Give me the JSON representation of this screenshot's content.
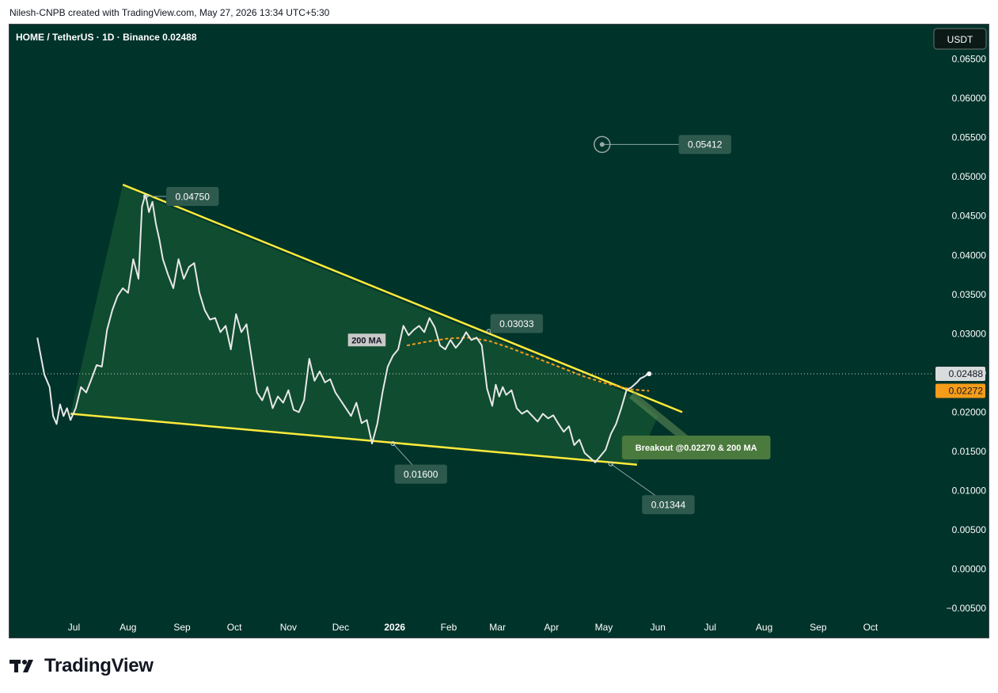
{
  "header": {
    "attribution": "Nilesh-CNPB created with TradingView.com, May 27, 2026 13:34 UTC+5:30"
  },
  "branding": {
    "logo_text": "TradingView"
  },
  "colors": {
    "background": "#00332a",
    "price_line": "#e8e8e8",
    "trendline": "#ffeb3b",
    "ma": "#f59c1a",
    "label_bg": "#2e5a4e",
    "wedge_fill": "#2f7a3c",
    "breakout_bg": "#4b7a3e",
    "ma_badge_bg": "#f59c1a",
    "axis_text": "#ffffff"
  },
  "chart_data": {
    "type": "line",
    "title": "HOME / TetherUS · 1D · Binance",
    "last_price_label": "0.02488",
    "currency": "USDT",
    "ylim": [
      -0.0055,
      0.069
    ],
    "y_ticks": [
      "0.06500",
      "0.06000",
      "0.05500",
      "0.05000",
      "0.04500",
      "0.04000",
      "0.03500",
      "0.03000",
      "0.02500",
      "0.02000",
      "0.01500",
      "0.01000",
      "0.00500",
      "0.00000",
      "−0.00500"
    ],
    "y_tick_values": [
      0.065,
      0.06,
      0.055,
      0.05,
      0.045,
      0.04,
      0.035,
      0.03,
      0.025,
      0.02,
      0.015,
      0.01,
      0.005,
      0,
      -0.005
    ],
    "x_range": [
      "2025-05-25",
      "2026-11-05"
    ],
    "x_ticks": [
      {
        "label": "Jul",
        "date": "2025-07-01",
        "bold": false
      },
      {
        "label": "Aug",
        "date": "2025-08-01",
        "bold": false
      },
      {
        "label": "Sep",
        "date": "2025-09-01",
        "bold": false
      },
      {
        "label": "Oct",
        "date": "2025-10-01",
        "bold": false
      },
      {
        "label": "Nov",
        "date": "2025-11-01",
        "bold": false
      },
      {
        "label": "Dec",
        "date": "2025-12-01",
        "bold": false
      },
      {
        "label": "2026",
        "date": "2026-01-01",
        "bold": true
      },
      {
        "label": "Feb",
        "date": "2026-02-01",
        "bold": false
      },
      {
        "label": "Mar",
        "date": "2026-03-01",
        "bold": false
      },
      {
        "label": "Apr",
        "date": "2026-04-01",
        "bold": false
      },
      {
        "label": "May",
        "date": "2026-05-01",
        "bold": false
      },
      {
        "label": "Jun",
        "date": "2026-06-01",
        "bold": false
      },
      {
        "label": "Jul",
        "date": "2026-07-01",
        "bold": false
      },
      {
        "label": "Aug",
        "date": "2026-08-01",
        "bold": false
      },
      {
        "label": "Sep",
        "date": "2026-09-01",
        "bold": false
      },
      {
        "label": "Oct",
        "date": "2026-10-01",
        "bold": false
      }
    ],
    "price_series": {
      "x": [
        "2025-06-10",
        "2025-06-14",
        "2025-06-17",
        "2025-06-19",
        "2025-06-21",
        "2025-06-23",
        "2025-06-25",
        "2025-06-27",
        "2025-06-29",
        "2025-07-02",
        "2025-07-05",
        "2025-07-08",
        "2025-07-11",
        "2025-07-14",
        "2025-07-17",
        "2025-07-20",
        "2025-07-23",
        "2025-07-26",
        "2025-07-29",
        "2025-08-01",
        "2025-08-04",
        "2025-08-07",
        "2025-08-09",
        "2025-08-11",
        "2025-08-13",
        "2025-08-15",
        "2025-08-17",
        "2025-08-19",
        "2025-08-21",
        "2025-08-24",
        "2025-08-27",
        "2025-08-30",
        "2025-09-02",
        "2025-09-05",
        "2025-09-08",
        "2025-09-11",
        "2025-09-14",
        "2025-09-17",
        "2025-09-20",
        "2025-09-23",
        "2025-09-26",
        "2025-09-29",
        "2025-10-02",
        "2025-10-05",
        "2025-10-08",
        "2025-10-11",
        "2025-10-14",
        "2025-10-17",
        "2025-10-20",
        "2025-10-23",
        "2025-10-26",
        "2025-10-29",
        "2025-11-01",
        "2025-11-04",
        "2025-11-07",
        "2025-11-10",
        "2025-11-13",
        "2025-11-16",
        "2025-11-19",
        "2025-11-22",
        "2025-11-25",
        "2025-11-28",
        "2025-12-01",
        "2025-12-04",
        "2025-12-07",
        "2025-12-10",
        "2025-12-13",
        "2025-12-16",
        "2025-12-19",
        "2025-12-22",
        "2025-12-25",
        "2025-12-28",
        "2025-12-31",
        "2026-01-03",
        "2026-01-06",
        "2026-01-09",
        "2026-01-12",
        "2026-01-15",
        "2026-01-18",
        "2026-01-21",
        "2026-01-24",
        "2026-01-27",
        "2026-01-30",
        "2026-02-02",
        "2026-02-05",
        "2026-02-08",
        "2026-02-11",
        "2026-02-14",
        "2026-02-17",
        "2026-02-20",
        "2026-02-23",
        "2026-02-26",
        "2026-02-28",
        "2026-03-02",
        "2026-03-04",
        "2026-03-06",
        "2026-03-09",
        "2026-03-12",
        "2026-03-15",
        "2026-03-18",
        "2026-03-21",
        "2026-03-24",
        "2026-03-27",
        "2026-03-30",
        "2026-04-02",
        "2026-04-05",
        "2026-04-08",
        "2026-04-11",
        "2026-04-14",
        "2026-04-17",
        "2026-04-20",
        "2026-04-23",
        "2026-04-26",
        "2026-04-29",
        "2026-05-02",
        "2026-05-05",
        "2026-05-08",
        "2026-05-11",
        "2026-05-14",
        "2026-05-17",
        "2026-05-20",
        "2026-05-22",
        "2026-05-24",
        "2026-05-26",
        "2026-05-27"
      ],
      "y": [
        0.0295,
        0.0248,
        0.0232,
        0.0195,
        0.0185,
        0.021,
        0.0195,
        0.0205,
        0.019,
        0.0205,
        0.0232,
        0.0225,
        0.0242,
        0.026,
        0.0258,
        0.0305,
        0.033,
        0.0348,
        0.0358,
        0.0352,
        0.0395,
        0.037,
        0.0462,
        0.0478,
        0.0455,
        0.0468,
        0.044,
        0.042,
        0.0395,
        0.0375,
        0.0358,
        0.0395,
        0.037,
        0.0385,
        0.039,
        0.0352,
        0.033,
        0.0318,
        0.032,
        0.0302,
        0.031,
        0.028,
        0.0325,
        0.0302,
        0.0312,
        0.0268,
        0.0225,
        0.0215,
        0.0232,
        0.0205,
        0.022,
        0.0212,
        0.0228,
        0.0203,
        0.02,
        0.0215,
        0.0268,
        0.024,
        0.0252,
        0.0238,
        0.0242,
        0.0225,
        0.0215,
        0.0205,
        0.0195,
        0.0212,
        0.0186,
        0.019,
        0.016,
        0.0185,
        0.0225,
        0.0258,
        0.0272,
        0.028,
        0.031,
        0.0298,
        0.0305,
        0.031,
        0.0302,
        0.032,
        0.0308,
        0.0285,
        0.028,
        0.0292,
        0.0282,
        0.029,
        0.0302,
        0.0292,
        0.0295,
        0.0285,
        0.023,
        0.0208,
        0.0235,
        0.022,
        0.0232,
        0.0222,
        0.0228,
        0.0205,
        0.0198,
        0.0202,
        0.0195,
        0.0188,
        0.0198,
        0.0192,
        0.0196,
        0.0185,
        0.0175,
        0.0182,
        0.0158,
        0.0165,
        0.0148,
        0.0142,
        0.0136,
        0.0144,
        0.0152,
        0.0172,
        0.0185,
        0.0205,
        0.0228,
        0.0232,
        0.0238,
        0.0243,
        0.0245,
        0.0248,
        0.02488
      ]
    },
    "ma_series": {
      "name": "200 MA",
      "x": [
        "2026-01-08",
        "2026-01-20",
        "2026-02-01",
        "2026-02-12",
        "2026-02-24",
        "2026-03-08",
        "2026-03-22",
        "2026-04-05",
        "2026-04-19",
        "2026-05-03",
        "2026-05-17",
        "2026-05-27"
      ],
      "y": [
        0.0285,
        0.029,
        0.0294,
        0.0295,
        0.0291,
        0.0282,
        0.027,
        0.0258,
        0.0246,
        0.0236,
        0.0229,
        0.02272
      ]
    },
    "current_price_line": 0.02488,
    "ma_price_label": "0.02272",
    "ma_price": 0.02272,
    "trendlines": [
      {
        "name": "upper-trendline",
        "from": {
          "x": "2025-07-29",
          "y": 0.049
        },
        "to": {
          "x": "2026-06-15",
          "y": 0.02
        }
      },
      {
        "name": "lower-trendline",
        "from": {
          "x": "2025-06-29",
          "y": 0.0198
        },
        "to": {
          "x": "2026-05-20",
          "y": 0.0133
        }
      }
    ],
    "annotations": [
      {
        "name": "label-high",
        "text": "0.04750",
        "anchor": {
          "x": "2025-08-11",
          "y": 0.0475
        },
        "box_at": {
          "x": "2025-09-07",
          "y": 0.0475
        }
      },
      {
        "name": "label-mid-high",
        "text": "0.03033",
        "anchor": {
          "x": "2026-02-24",
          "y": 0.0303
        },
        "box_at": {
          "x": "2026-03-12",
          "y": 0.0313
        }
      },
      {
        "name": "label-dec-low",
        "text": "0.01600",
        "anchor": {
          "x": "2025-12-31",
          "y": 0.016
        },
        "box_at": {
          "x": "2026-01-16",
          "y": 0.0121
        }
      },
      {
        "name": "label-may-low",
        "text": "0.01344",
        "anchor": {
          "x": "2026-05-05",
          "y": 0.0134
        },
        "box_at": {
          "x": "2026-06-07",
          "y": 0.0082
        }
      },
      {
        "name": "label-target",
        "text": "0.05412",
        "anchor": {
          "x": "2026-04-30",
          "y": 0.05412
        },
        "box_at": {
          "x": "2026-06-28",
          "y": 0.05412
        }
      }
    ],
    "ma_badge": {
      "text": "200 MA",
      "x": "2025-12-16",
      "y": 0.0292
    },
    "breakout_label": {
      "text": "Breakout @0.02270 & 200 MA",
      "anchor": {
        "x": "2026-05-17",
        "y": 0.0222
      },
      "box_at": {
        "x": "2026-06-23",
        "y": 0.0155
      }
    }
  }
}
